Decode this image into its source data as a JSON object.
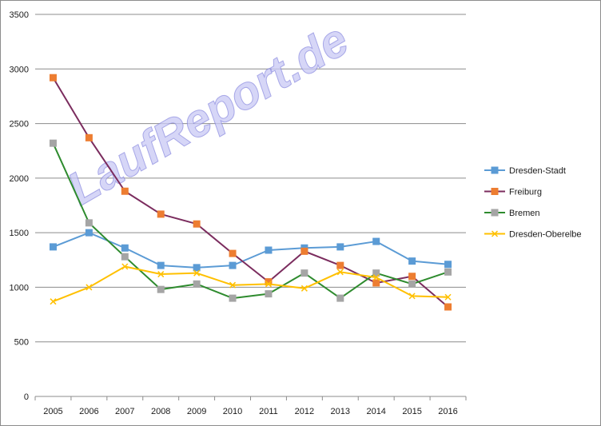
{
  "watermark": "LaufReport.de",
  "chart_data": {
    "type": "line",
    "title": "",
    "xlabel": "",
    "ylabel": "",
    "categories": [
      "2005",
      "2006",
      "2007",
      "2008",
      "2009",
      "2010",
      "2011",
      "2012",
      "2013",
      "2014",
      "2015",
      "2016"
    ],
    "ylim": [
      0,
      3500
    ],
    "yticks": [
      0,
      500,
      1000,
      1500,
      2000,
      2500,
      3000,
      3500
    ],
    "grid": "horizontal",
    "legend_position": "right",
    "series": [
      {
        "name": "Dresden-Stadt",
        "color": "#5b9bd5",
        "marker": "square",
        "values": [
          1370,
          1500,
          1360,
          1200,
          1180,
          1200,
          1340,
          1360,
          1370,
          1420,
          1240,
          1210
        ]
      },
      {
        "name": "Freiburg",
        "color": "#7b2c5e",
        "marker": "square",
        "marker_color": "#ed7d31",
        "values": [
          2920,
          2370,
          1880,
          1670,
          1580,
          1310,
          1050,
          1330,
          1200,
          1040,
          1100,
          820
        ]
      },
      {
        "name": "Bremen",
        "color": "#2e8b2e",
        "marker": "square",
        "marker_color": "#a5a5a5",
        "values": [
          2320,
          1590,
          1280,
          980,
          1030,
          900,
          940,
          1130,
          900,
          1130,
          1030,
          1140
        ]
      },
      {
        "name": "Dresden-Oberelbe",
        "color": "#ffc000",
        "marker": "x",
        "values": [
          870,
          1000,
          1190,
          1120,
          1130,
          1020,
          1030,
          990,
          1140,
          1090,
          920,
          910
        ]
      }
    ]
  }
}
